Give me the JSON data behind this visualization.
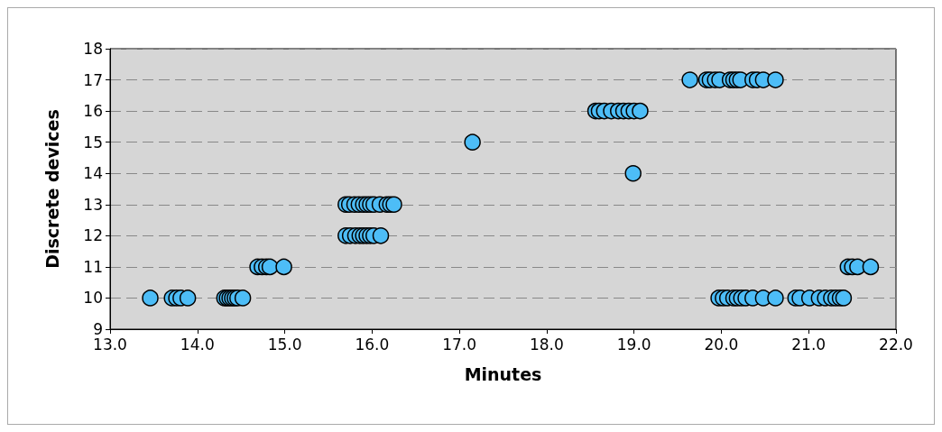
{
  "chart_data": {
    "type": "scatter",
    "xlabel": "Minutes",
    "ylabel": "Discrete devices",
    "xlim": [
      13,
      22
    ],
    "ylim": [
      9,
      18
    ],
    "xticks": [
      {
        "value": 13,
        "label": "13.0"
      },
      {
        "value": 14,
        "label": "14.0"
      },
      {
        "value": 15,
        "label": "15.0"
      },
      {
        "value": 16,
        "label": "16.0"
      },
      {
        "value": 17,
        "label": "17.0"
      },
      {
        "value": 18,
        "label": "18.0"
      },
      {
        "value": 19,
        "label": "19.0"
      },
      {
        "value": 20,
        "label": "20.0"
      },
      {
        "value": 21,
        "label": "21.0"
      },
      {
        "value": 22,
        "label": "22.0"
      }
    ],
    "yticks": [
      9,
      10,
      11,
      12,
      13,
      14,
      15,
      16,
      17,
      18
    ],
    "grid": "y",
    "marker": "circle",
    "series": [
      {
        "color": "#4dbdf7",
        "x": [
          13.46,
          13.71,
          13.76,
          13.81,
          13.89,
          14.31,
          14.34,
          14.37,
          14.4,
          14.43,
          14.46,
          14.52,
          14.69,
          14.74,
          14.79,
          14.83,
          14.99,
          15.7,
          15.74,
          15.8,
          15.85,
          15.9,
          15.94,
          15.98,
          16.02,
          16.09,
          16.17,
          16.21,
          16.25,
          15.7,
          15.75,
          15.81,
          15.86,
          15.9,
          15.94,
          15.98,
          16.02,
          16.1,
          17.15,
          18.99,
          18.56,
          18.6,
          18.66,
          18.74,
          18.82,
          18.88,
          18.94,
          19.0,
          19.07,
          19.64,
          19.83,
          19.87,
          19.93,
          19.98,
          20.1,
          20.14,
          20.18,
          20.22,
          20.36,
          20.41,
          20.48,
          20.62,
          19.97,
          20.02,
          20.07,
          20.14,
          20.18,
          20.23,
          20.28,
          20.36,
          20.48,
          20.62,
          20.85,
          20.9,
          21.01,
          21.12,
          21.19,
          21.26,
          21.31,
          21.36,
          21.4,
          21.45,
          21.5,
          21.56,
          21.71
        ],
        "values": [
          10,
          10,
          10,
          10,
          10,
          10,
          10,
          10,
          10,
          10,
          10,
          10,
          11,
          11,
          11,
          11,
          11,
          13,
          13,
          13,
          13,
          13,
          13,
          13,
          13,
          13,
          13,
          13,
          13,
          12,
          12,
          12,
          12,
          12,
          12,
          12,
          12,
          12,
          15,
          14,
          16,
          16,
          16,
          16,
          16,
          16,
          16,
          16,
          16,
          17,
          17,
          17,
          17,
          17,
          17,
          17,
          17,
          17,
          17,
          17,
          17,
          17,
          10,
          10,
          10,
          10,
          10,
          10,
          10,
          10,
          10,
          10,
          10,
          10,
          10,
          10,
          10,
          10,
          10,
          10,
          10,
          11,
          11,
          11,
          11
        ]
      }
    ]
  }
}
